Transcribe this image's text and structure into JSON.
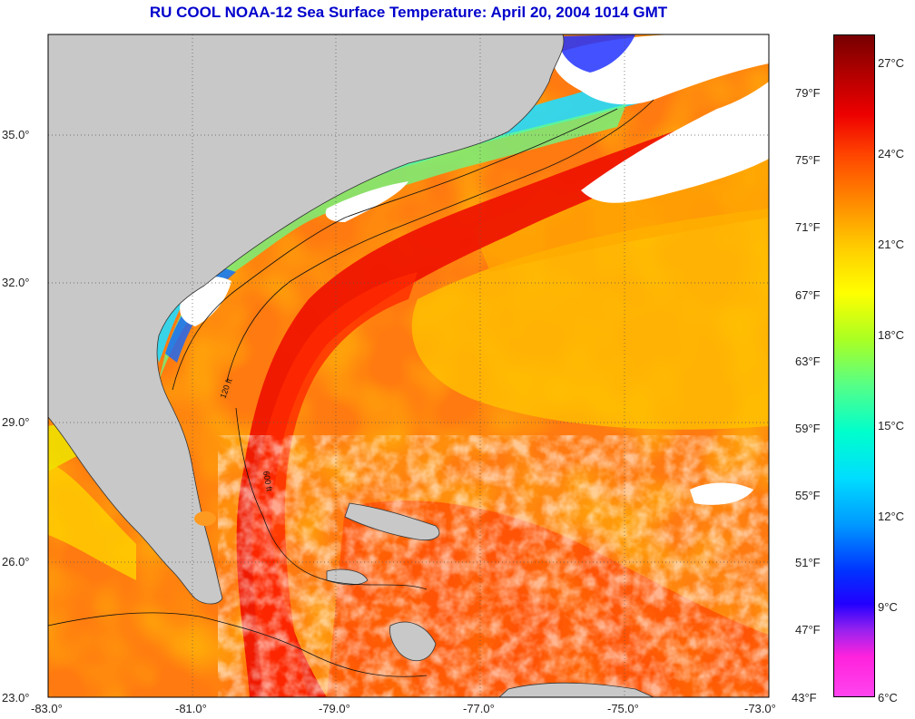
{
  "title": "RU COOL  NOAA-12  Sea Surface Temperature:  April 20, 2004 1014 GMT",
  "map": {
    "lon_ticks": [
      "-83.0°",
      "-81.0°",
      "-79.0°",
      "-77.0°",
      "-75.0°",
      "-73.0°"
    ],
    "lat_ticks": [
      "23.0°",
      "26.0°",
      "29.0°",
      "32.0°",
      "35.0°"
    ],
    "lon_range": [
      -83.0,
      -73.0
    ],
    "lat_range": [
      23.0,
      37.0
    ],
    "grid": true,
    "land_color": "#c8c8c8",
    "cloud_color": "#ffffff",
    "contour_labels": [
      "120 ft",
      "600 ft"
    ]
  },
  "colorbar": {
    "celsius_labels": [
      "27°C",
      "24°C",
      "21°C",
      "18°C",
      "15°C",
      "12°C",
      "9°C",
      "6°C"
    ],
    "fahrenheit_labels": [
      "79°F",
      "75°F",
      "71°F",
      "67°F",
      "63°F",
      "59°F",
      "55°F",
      "51°F",
      "47°F",
      "43°F"
    ],
    "celsius_range": [
      6,
      28
    ],
    "colors": [
      "#ff44ee",
      "#9922ee",
      "#0033ff",
      "#00ddff",
      "#55ff88",
      "#ffff00",
      "#ff8800",
      "#ee0000",
      "#770000"
    ]
  }
}
